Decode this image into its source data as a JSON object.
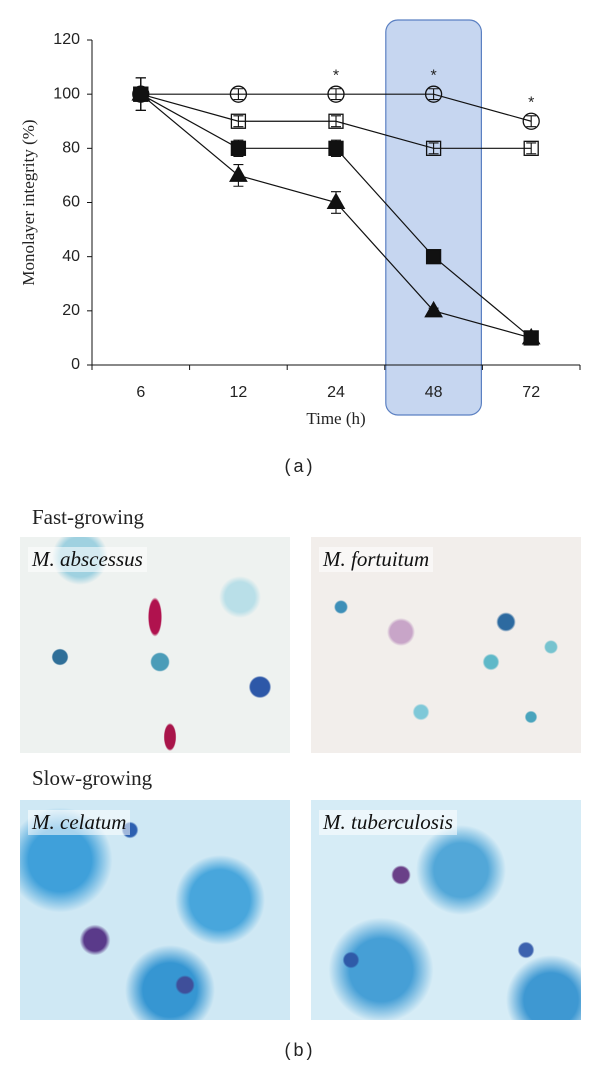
{
  "chart_data": {
    "type": "line",
    "y_label": "Monolayer integrity (%)",
    "x_label": "Time (h)",
    "categories": [
      "6",
      "12",
      "24",
      "48",
      "72"
    ],
    "ylim": [
      0,
      120
    ],
    "yticks": [
      0,
      20,
      40,
      60,
      80,
      100,
      120
    ],
    "highlight": {
      "category": "48",
      "color": "#c6d6f0",
      "border": "#5b80c2"
    },
    "line_color": "#111",
    "series": [
      {
        "marker": "circle",
        "filled": false,
        "values": [
          100,
          100,
          100,
          100,
          90
        ],
        "errors": [
          6,
          2,
          2,
          2,
          2
        ]
      },
      {
        "marker": "square",
        "filled": false,
        "values": [
          100,
          90,
          90,
          80,
          80
        ],
        "errors": [
          6,
          2,
          2,
          2,
          2
        ]
      },
      {
        "marker": "square",
        "filled": true,
        "values": [
          100,
          80,
          80,
          40,
          10
        ],
        "errors": [
          6,
          3,
          3,
          1,
          1
        ]
      },
      {
        "marker": "triangle",
        "filled": true,
        "values": [
          100,
          70,
          60,
          20,
          10
        ],
        "errors": [
          6,
          4,
          4,
          1,
          1
        ]
      }
    ],
    "annotations": [
      {
        "text": "*",
        "category": "24"
      },
      {
        "text": "*",
        "category": "48"
      },
      {
        "text": "*",
        "category": "72"
      }
    ]
  },
  "captions": [
    "(a)",
    "(b)"
  ],
  "panel_b": [
    {
      "title": "Fast-growing",
      "images": [
        "M. abscessus",
        "M. fortuitum"
      ]
    },
    {
      "title": "Slow-growing",
      "images": [
        "M. celatum",
        "M. tuberculosis"
      ]
    }
  ]
}
